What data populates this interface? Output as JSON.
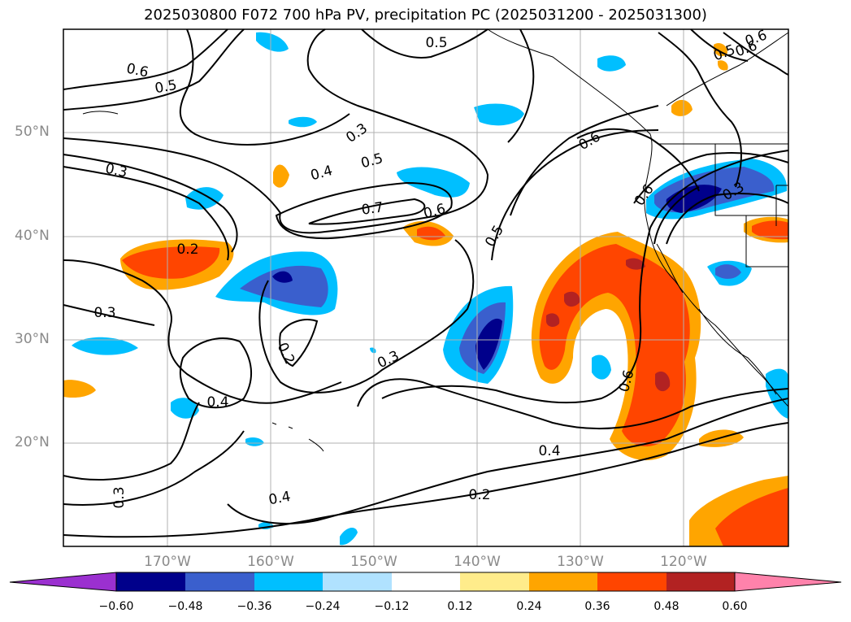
{
  "title": "2025030800 F072 700 hPa PV, precipitation PC (2025031200 - 2025031300)",
  "lat_labels": [
    "50°N",
    "40°N",
    "30°N",
    "20°N"
  ],
  "lon_labels": [
    "170°W",
    "160°W",
    "150°W",
    "140°W",
    "130°W",
    "120°W"
  ],
  "contour_labels": [
    "0.6",
    "0.5",
    "0.5",
    "0.6",
    "0.5",
    "0.6",
    "0.3",
    "0.4",
    "0.5",
    "0.7",
    "0.6",
    "0.3",
    "0.2",
    "0.3",
    "0.2",
    "0.5",
    "0.6",
    "0.6",
    "0.3",
    "0.4",
    "0.3",
    "0.4",
    "0.2",
    "0.4",
    "0.3"
  ],
  "colorbar": {
    "ticks": [
      "−0.60",
      "−0.48",
      "−0.36",
      "−0.24",
      "−0.12",
      "0.12",
      "0.24",
      "0.36",
      "0.48",
      "0.60"
    ],
    "colors": [
      "#9b30d0",
      "#00008b",
      "#3a5fcd",
      "#00bfff",
      "#b0e2ff",
      "#ffffff",
      "#ffec8b",
      "#ffa500",
      "#ff4500",
      "#b22222",
      "#ff82ab"
    ]
  }
}
